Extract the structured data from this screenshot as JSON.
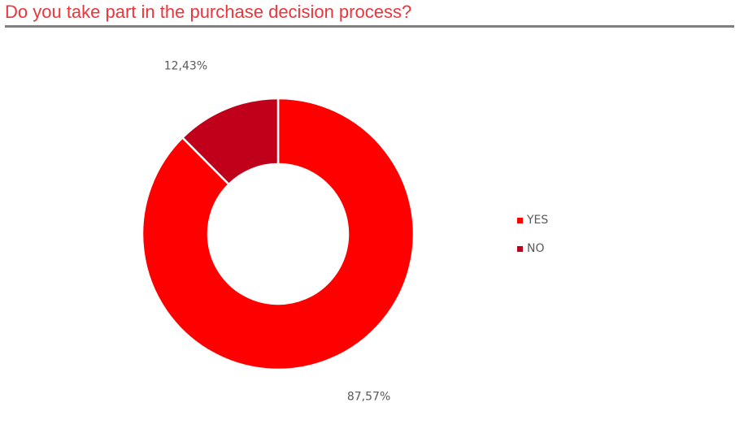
{
  "title": "Do you take part in the purchase decision process?",
  "chart_data": {
    "type": "pie",
    "subtype": "donut",
    "categories": [
      "YES",
      "NO"
    ],
    "values": [
      87.57,
      12.43
    ],
    "data_labels": [
      "87,57%",
      "12,43%"
    ],
    "colors": [
      "#ff0000",
      "#c0001b"
    ],
    "legend_position": "right"
  },
  "legend": {
    "items": [
      {
        "label": "YES",
        "color": "#ff0000"
      },
      {
        "label": "NO",
        "color": "#c0001b"
      }
    ]
  },
  "colors": {
    "title": "#e8363c",
    "rule": "#7f7f7f",
    "label_text": "#595959"
  }
}
